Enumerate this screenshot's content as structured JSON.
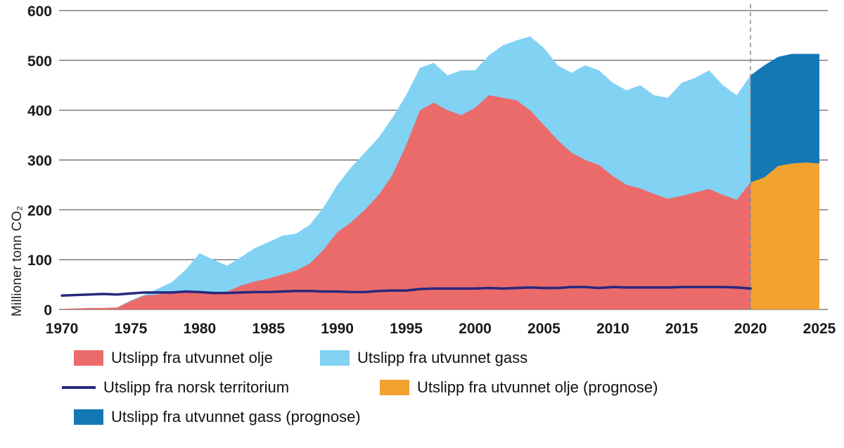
{
  "chart_data": {
    "type": "area",
    "title": "",
    "ylabel": "Millioner tonn CO₂",
    "ylim": [
      0,
      600
    ],
    "xlim": [
      1970,
      2025
    ],
    "yticks": [
      0,
      100,
      200,
      300,
      400,
      500,
      600
    ],
    "xticks": [
      1970,
      1975,
      1980,
      1985,
      1990,
      1995,
      2000,
      2005,
      2010,
      2015,
      2020,
      2025
    ],
    "forecast_divider_year": 2020,
    "grid": true,
    "legend_position": "bottom",
    "years_historical": [
      1970,
      1971,
      1972,
      1973,
      1974,
      1975,
      1976,
      1977,
      1978,
      1979,
      1980,
      1981,
      1982,
      1983,
      1984,
      1985,
      1986,
      1987,
      1988,
      1989,
      1990,
      1991,
      1992,
      1993,
      1994,
      1995,
      1996,
      1997,
      1998,
      1999,
      2000,
      2001,
      2002,
      2003,
      2004,
      2005,
      2006,
      2007,
      2008,
      2009,
      2010,
      2011,
      2012,
      2013,
      2014,
      2015,
      2016,
      2017,
      2018,
      2019,
      2020
    ],
    "years_forecast": [
      2020,
      2021,
      2022,
      2023,
      2024,
      2025
    ],
    "series": [
      {
        "name": "Utslipp fra utvunnet olje",
        "type": "area",
        "color": "#eb6b6b",
        "values": [
          1,
          2,
          3,
          3,
          4,
          17,
          28,
          30,
          35,
          38,
          35,
          33,
          36,
          48,
          56,
          62,
          70,
          78,
          92,
          120,
          155,
          175,
          200,
          230,
          270,
          330,
          400,
          415,
          400,
          390,
          405,
          430,
          425,
          420,
          400,
          370,
          340,
          315,
          300,
          290,
          268,
          250,
          243,
          232,
          222,
          228,
          235,
          242,
          230,
          220,
          255
        ]
      },
      {
        "name": "Utslipp fra utvunnet gass",
        "type": "area",
        "stacked_on": "Utslipp fra utvunnet olje",
        "color": "#82d2f4",
        "values": [
          0,
          0,
          0,
          0,
          0,
          1,
          2,
          12,
          20,
          42,
          78,
          67,
          52,
          57,
          67,
          73,
          78,
          74,
          78,
          85,
          95,
          110,
          115,
          115,
          115,
          100,
          85,
          80,
          70,
          90,
          75,
          80,
          105,
          120,
          148,
          155,
          150,
          160,
          190,
          190,
          187,
          190,
          207,
          198,
          203,
          227,
          230,
          238,
          220,
          210,
          215
        ]
      },
      {
        "name": "Utslipp fra norsk territorium",
        "type": "line",
        "color": "#28277e",
        "values": [
          28,
          29,
          30,
          31,
          30,
          32,
          34,
          34,
          34,
          36,
          35,
          33,
          33,
          34,
          35,
          35,
          36,
          37,
          37,
          36,
          36,
          35,
          35,
          37,
          38,
          38,
          41,
          42,
          42,
          42,
          42,
          43,
          42,
          43,
          44,
          43,
          43,
          45,
          45,
          43,
          45,
          44,
          44,
          44,
          44,
          45,
          45,
          45,
          45,
          44,
          42
        ]
      },
      {
        "name": "Utslipp fra utvunnet olje (prognose)",
        "type": "area",
        "color": "#f1a22f",
        "values": [
          255,
          265,
          288,
          293,
          295,
          293
        ]
      },
      {
        "name": "Utslipp fra utvunnet gass (prognose)",
        "type": "area",
        "stacked_on": "Utslipp fra utvunnet olje (prognose)",
        "color": "#1478b4",
        "values": [
          215,
          225,
          219,
          220,
          218,
          220
        ]
      }
    ],
    "colors": {
      "grid": "#3c3c3c",
      "divider": "#8a8a8a",
      "tick_text": "#1a1a1a"
    }
  }
}
